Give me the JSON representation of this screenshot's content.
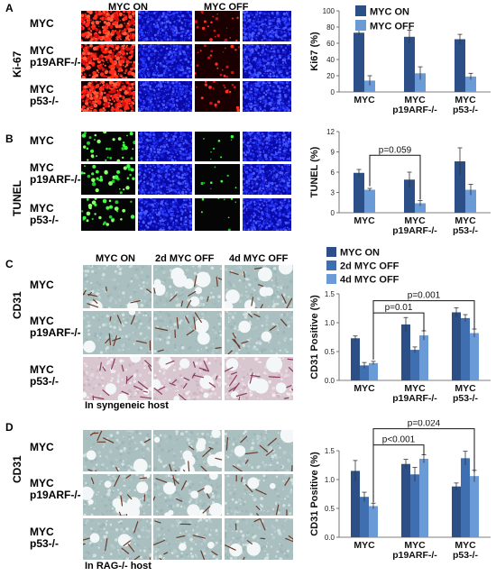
{
  "colors": {
    "dark": "#2b4f86",
    "mid": "#3f6fb0",
    "light": "#6b9bd6"
  },
  "panel_a": {
    "letter": "A",
    "side_label": "Ki-67",
    "col_on": "MYC ON",
    "col_off": "MYC OFF",
    "rows": [
      "MYC",
      "MYC\np19ARF-/-",
      "MYC\np53-/-"
    ]
  },
  "panel_b": {
    "letter": "B",
    "side_label": "TUNEL",
    "rows": [
      "MYC",
      "MYC\np19ARF-/-",
      "MYC\np53-/-"
    ]
  },
  "panel_c": {
    "letter": "C",
    "side_label": "CD31",
    "cols": [
      "MYC ON",
      "2d MYC OFF",
      "4d MYC OFF"
    ],
    "rows": [
      "MYC",
      "MYC\np19ARF-/-",
      "MYC\np53-/-"
    ],
    "host_note": "In syngeneic host"
  },
  "panel_d": {
    "letter": "D",
    "side_label": "CD31",
    "rows": [
      "MYC",
      "MYC\np19ARF-/-",
      "MYC\np53-/-"
    ],
    "host_note": "In RAG-/- host"
  },
  "chart_data": [
    {
      "type": "bar",
      "id": "A",
      "categories": [
        "MYC",
        "MYC\np19ARF-/-",
        "MYC\np53-/-"
      ],
      "series": [
        {
          "name": "MYC ON",
          "values": [
            73,
            68,
            65
          ]
        },
        {
          "name": "MYC OFF",
          "values": [
            14,
            23,
            19
          ]
        }
      ],
      "errors": [
        [
          3,
          8,
          6
        ],
        [
          6,
          8,
          4
        ]
      ],
      "ylabel": "Ki67 (%)",
      "ylim": [
        0,
        100
      ],
      "yticks": [
        0,
        20,
        40,
        60,
        80,
        100
      ],
      "legend": "top-right"
    },
    {
      "type": "bar",
      "id": "B",
      "categories": [
        "MYC",
        "MYC\np19ARF-/-",
        "MYC\np53-/-"
      ],
      "series": [
        {
          "name": "MYC ON",
          "values": [
            5.9,
            4.9,
            7.6
          ]
        },
        {
          "name": "MYC OFF",
          "values": [
            3.4,
            1.4,
            3.4
          ]
        }
      ],
      "errors": [
        [
          0.5,
          1.1,
          2
        ],
        [
          0.2,
          0.4,
          0.8
        ]
      ],
      "ylabel": "TUNEL (%)",
      "ylim": [
        0,
        12
      ],
      "yticks": [
        0,
        3,
        6,
        9,
        12
      ],
      "annotation": "p=0.059"
    },
    {
      "type": "bar",
      "id": "C",
      "categories": [
        "MYC",
        "MYC\np19ARF-/-",
        "MYC\np53-/-"
      ],
      "series": [
        {
          "name": "MYC ON",
          "values": [
            0.73,
            0.97,
            1.18
          ]
        },
        {
          "name": "2d MYC OFF",
          "values": [
            0.26,
            0.53,
            1.08
          ]
        },
        {
          "name": "4d MYC OFF",
          "values": [
            0.3,
            0.78,
            0.82
          ]
        }
      ],
      "errors": [
        [
          0.04,
          0.12,
          0.08
        ],
        [
          0.05,
          0.05,
          0.06
        ],
        [
          0.03,
          0.08,
          0.07
        ]
      ],
      "ylabel": "CD31 Positive (%)",
      "ylim": [
        0,
        1.5
      ],
      "yticks": [
        0.0,
        0.5,
        1.0,
        1.5
      ],
      "annotations": [
        "p=0.01",
        "p=0.001"
      ],
      "legend": "top"
    },
    {
      "type": "bar",
      "id": "D",
      "categories": [
        "MYC",
        "MYC\np19ARF-/-",
        "MYC\np53-/-"
      ],
      "series": [
        {
          "name": "MYC ON",
          "values": [
            1.15,
            1.27,
            0.88
          ]
        },
        {
          "name": "2d MYC OFF",
          "values": [
            0.7,
            1.09,
            1.37
          ]
        },
        {
          "name": "4d MYC OFF",
          "values": [
            0.54,
            1.36,
            1.06
          ]
        }
      ],
      "errors": [
        [
          0.18,
          0.08,
          0.06
        ],
        [
          0.08,
          0.12,
          0.12
        ],
        [
          0.05,
          0.07,
          0.1
        ]
      ],
      "ylabel": "CD31 Positive (%)",
      "ylim": [
        0,
        1.5
      ],
      "yticks": [
        0.0,
        0.5,
        1.0,
        1.5
      ],
      "annotations": [
        "p<0.001",
        "p=0.024"
      ]
    }
  ]
}
